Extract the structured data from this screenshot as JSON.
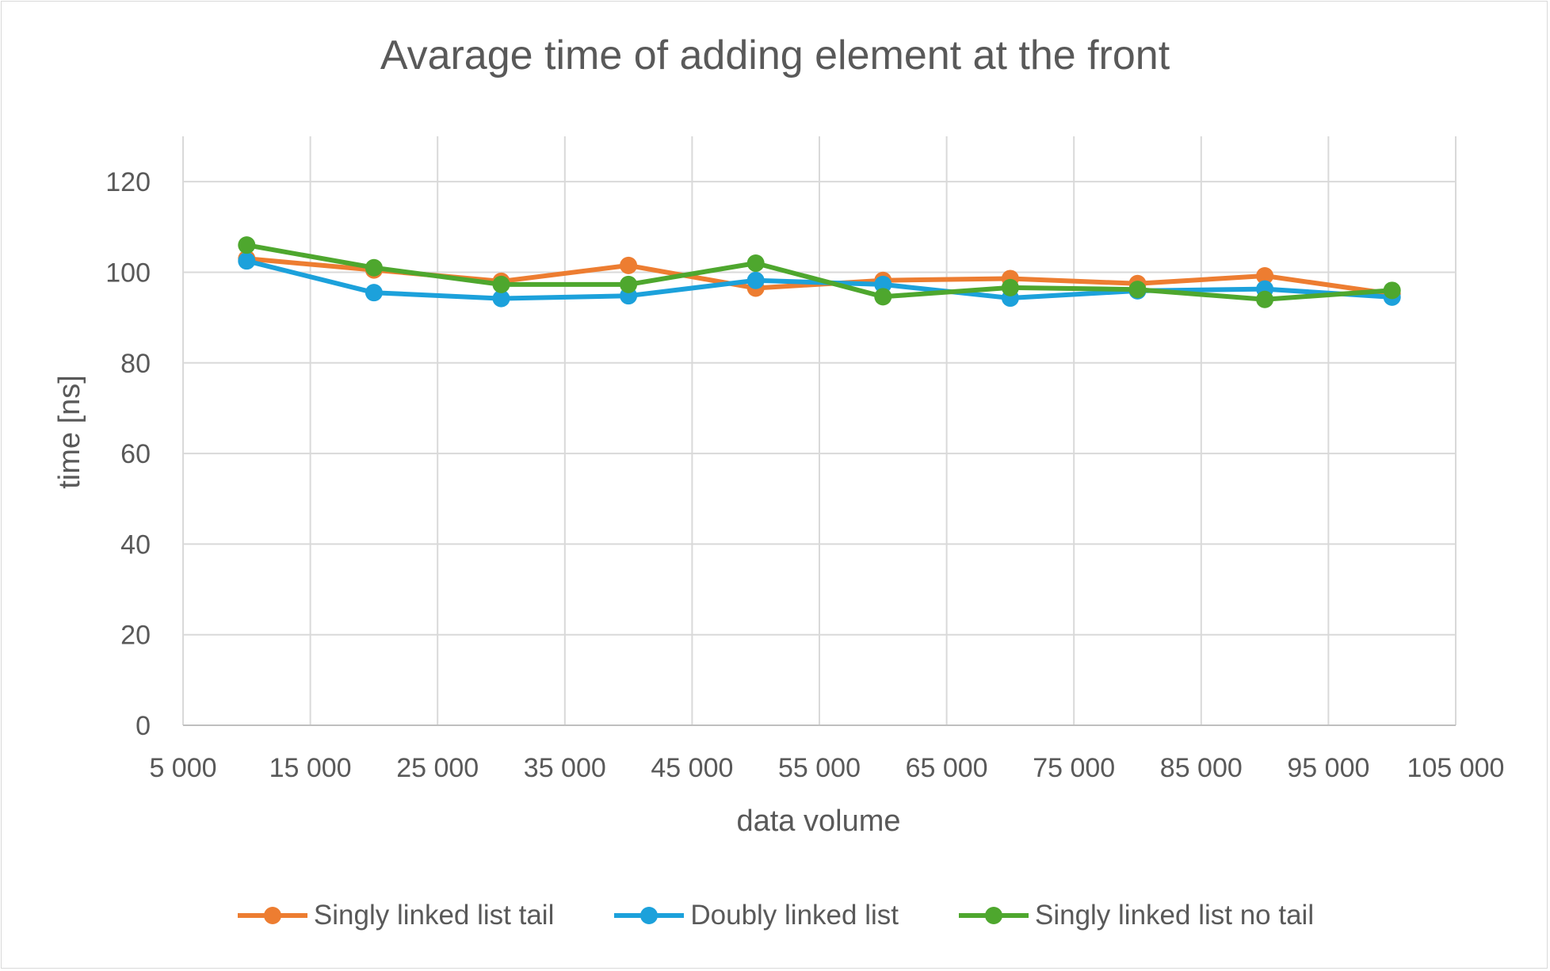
{
  "chart_data": {
    "type": "line",
    "title": "Avarage time of adding element at the front",
    "xlabel": "data volume",
    "ylabel": "time  [ns]",
    "xlim": [
      5000,
      105000
    ],
    "ylim": [
      0,
      130
    ],
    "x_ticks": [
      "5 000",
      "15 000",
      "25 000",
      "35 000",
      "45 000",
      "55 000",
      "65 000",
      "75 000",
      "85 000",
      "95 000",
      "105 000"
    ],
    "y_ticks": [
      "0",
      "20",
      "40",
      "60",
      "80",
      "100",
      "120"
    ],
    "grid": true,
    "legend_position": "bottom",
    "x": [
      10000,
      20000,
      30000,
      40000,
      50000,
      60000,
      70000,
      80000,
      90000,
      100000
    ],
    "series": [
      {
        "name": "Singly linked list tail",
        "color": "#ed7d31",
        "values": [
          103,
          100.5,
          98,
          101.5,
          96.5,
          98.2,
          98.6,
          97.5,
          99.2,
          95.2
        ]
      },
      {
        "name": "Doubly linked list",
        "color": "#1ca1db",
        "values": [
          102.5,
          95.5,
          94.2,
          94.8,
          98.2,
          97.3,
          94.3,
          95.9,
          96.3,
          94.5
        ]
      },
      {
        "name": "Singly linked list no tail",
        "color": "#4ea72e",
        "values": [
          106,
          101,
          97.3,
          97.3,
          102,
          94.6,
          96.6,
          96.2,
          94,
          96
        ]
      }
    ]
  }
}
